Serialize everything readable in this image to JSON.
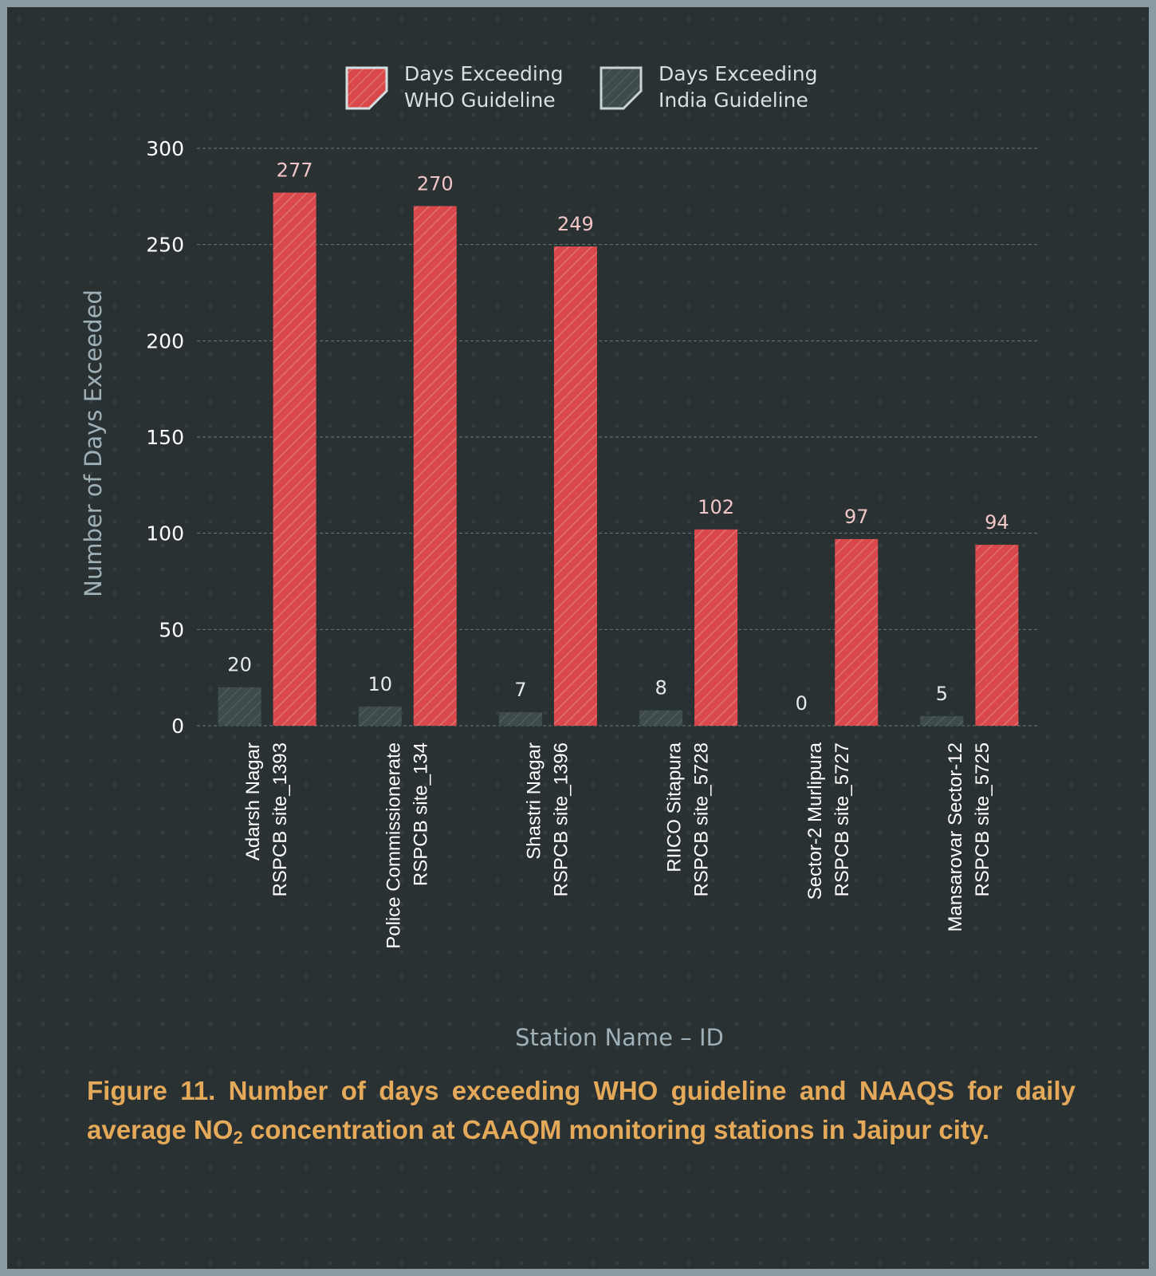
{
  "chart_data": {
    "type": "bar",
    "categories": [
      [
        "Adarsh Nagar",
        "RSPCB site_1393"
      ],
      [
        "Police Commissionerate",
        "RSPCB site_134"
      ],
      [
        "Shastri Nagar",
        "RSPCB site_1396"
      ],
      [
        "RIICO Sitapura",
        "RSPCB site_5728"
      ],
      [
        "Sector-2 Murlipura",
        "RSPCB site_5727"
      ],
      [
        "Mansarovar Sector-12",
        "RSPCB site_5725"
      ]
    ],
    "series": [
      {
        "name": "Days Exceeding India Guideline",
        "legend_lines": [
          "Days Exceeding",
          "India Guideline"
        ],
        "values": [
          20,
          10,
          7,
          8,
          0,
          5
        ],
        "color": "#3e4b4c"
      },
      {
        "name": "Days Exceeding WHO Guideline",
        "legend_lines": [
          "Days Exceeding",
          "WHO Guideline"
        ],
        "values": [
          277,
          270,
          249,
          102,
          97,
          94
        ],
        "color": "#d9484b"
      }
    ],
    "ylabel": "Number of Days Exceeded",
    "xlabel": "Station Name – ID",
    "ylim": [
      0,
      300
    ],
    "yticks": [
      0,
      50,
      100,
      150,
      200,
      250,
      300
    ],
    "grid": true,
    "legend_position": "top"
  },
  "caption": {
    "part1": "Figure 11. Number of days exceeding WHO guideline and NAAQS for daily average NO",
    "sub": "2",
    "part2": " concentration at CAAQM monitoring stations in Jaipur city."
  },
  "colors": {
    "background": "#293133",
    "border": "#8a9ca3",
    "who_bar": "#d9484b",
    "india_bar": "#3e4b4c",
    "caption": "#e5a95a"
  }
}
